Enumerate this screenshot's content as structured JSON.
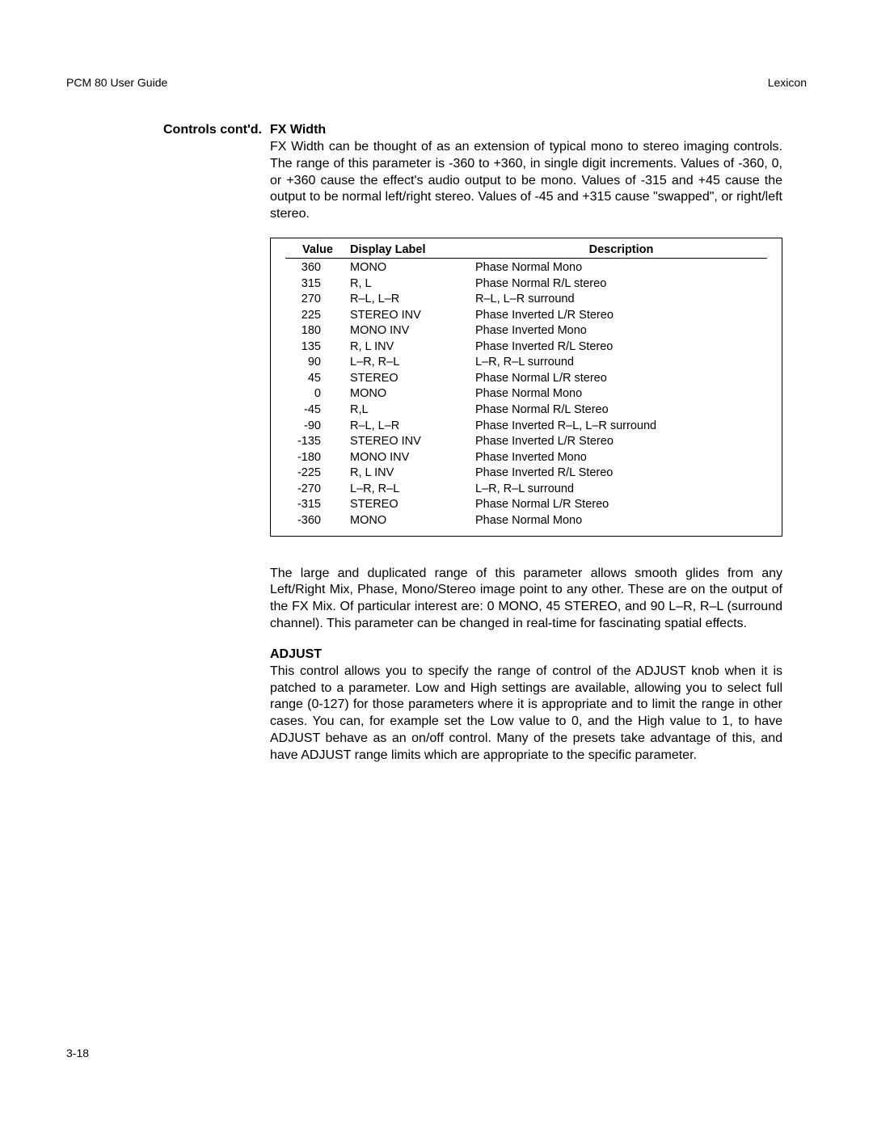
{
  "header": {
    "left": "PCM 80 User Guide",
    "right": "Lexicon"
  },
  "sidebar": {
    "label": "Controls cont'd."
  },
  "section1": {
    "title": "FX Width",
    "para1": "FX Width can be thought of as an extension of typical mono to stereo imaging controls. The range of this parameter is -360 to +360, in single digit increments. Values of -360, 0, or +360 cause the effect's audio output to be mono. Values of -315 and +45 cause the output to be normal left/right stereo. Values of -45 and +315 cause \"swapped\", or right/left stereo."
  },
  "table": {
    "headers": {
      "value": "Value",
      "label": "Display Label",
      "desc": "Description"
    },
    "rows": [
      {
        "value": "360",
        "label": "MONO",
        "desc": "Phase Normal Mono"
      },
      {
        "value": "315",
        "label": "R, L",
        "desc": "Phase Normal R/L stereo"
      },
      {
        "value": "270",
        "label": "R–L, L–R",
        "desc": "R–L, L–R surround"
      },
      {
        "value": "225",
        "label": "STEREO INV",
        "desc": "Phase Inverted L/R Stereo"
      },
      {
        "value": "180",
        "label": "MONO INV",
        "desc": "Phase Inverted Mono"
      },
      {
        "value": "135",
        "label": "R, L INV",
        "desc": "Phase Inverted R/L Stereo"
      },
      {
        "value": "90",
        "label": "L–R, R–L",
        "desc": "L–R, R–L surround"
      },
      {
        "value": "45",
        "label": "STEREO",
        "desc": "Phase Normal L/R stereo"
      },
      {
        "value": "0",
        "label": "MONO",
        "desc": "Phase Normal Mono"
      },
      {
        "value": "-45",
        "label": "R,L",
        "desc": "Phase Normal R/L Stereo"
      },
      {
        "value": "-90",
        "label": "R–L, L–R",
        "desc": "Phase Inverted R–L, L–R surround"
      },
      {
        "value": "-135",
        "label": "STEREO INV",
        "desc": "Phase Inverted L/R Stereo"
      },
      {
        "value": "-180",
        "label": "MONO INV",
        "desc": "Phase Inverted Mono"
      },
      {
        "value": "-225",
        "label": "R, L INV",
        "desc": "Phase Inverted R/L Stereo"
      },
      {
        "value": "-270",
        "label": "L–R, R–L",
        "desc": "L–R, R–L surround"
      },
      {
        "value": "-315",
        "label": "STEREO",
        "desc": "Phase Normal L/R Stereo"
      },
      {
        "value": "-360",
        "label": "MONO",
        "desc": "Phase Normal Mono"
      }
    ]
  },
  "section1_after": {
    "para": "The  large and duplicated range of this parameter allows smooth glides from any Left/Right Mix, Phase, Mono/Stereo image point to any other. These are on the output of the FX Mix. Of particular interest are: 0  MONO, 45 STEREO, and 90 L–R, R–L (surround channel). This parameter can be changed in real-time for fascinating spatial effects."
  },
  "section2": {
    "title": "ADJUST",
    "para": "This control allows you to specify the range of control of the ADJUST knob when it is patched to a parameter. Low and High settings are available, allowing you to select full range (0-127) for those parameters where it is appropriate and to limit the range in other cases. You can, for example set the Low value to 0, and the High value to 1, to have ADJUST behave as an on/off control. Many of the presets take advantage of this, and have ADJUST range limits which are appropriate to the specific parameter."
  },
  "pagenum": "3-18"
}
